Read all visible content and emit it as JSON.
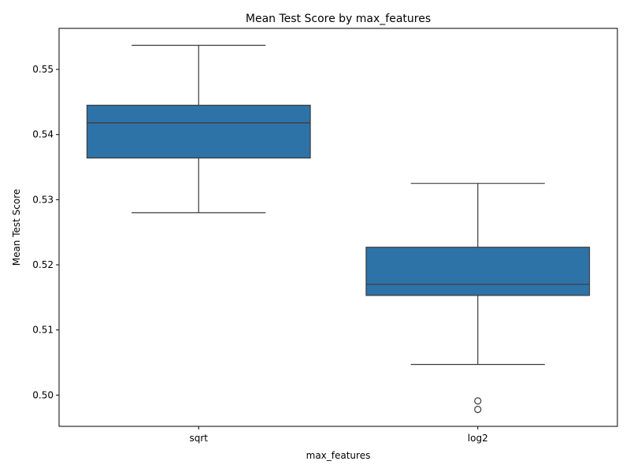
{
  "chart_data": {
    "type": "box",
    "title": "Mean Test Score by max_features",
    "xlabel": "max_features",
    "ylabel": "Mean Test Score",
    "ylim": [
      0.4952,
      0.5563
    ],
    "yticks": [
      0.5,
      0.51,
      0.52,
      0.53,
      0.54,
      0.55
    ],
    "ytick_labels": [
      "0.50",
      "0.51",
      "0.52",
      "0.53",
      "0.54",
      "0.55"
    ],
    "categories": [
      "sqrt",
      "log2"
    ],
    "grid": false,
    "color": "#2e73a8",
    "boxes": [
      {
        "category": "sqrt",
        "whisker_low": 0.528,
        "q1": 0.5364,
        "median": 0.5418,
        "q3": 0.5445,
        "whisker_high": 0.5537,
        "outliers": []
      },
      {
        "category": "log2",
        "whisker_low": 0.5047,
        "q1": 0.5153,
        "median": 0.517,
        "q3": 0.5227,
        "whisker_high": 0.5325,
        "outliers": [
          0.4991,
          0.4978
        ]
      }
    ]
  }
}
